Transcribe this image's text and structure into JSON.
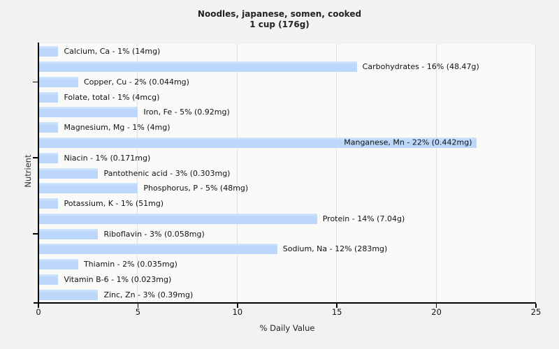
{
  "title": {
    "line1": "Noodles, japanese, somen, cooked",
    "line2": "1 cup (176g)"
  },
  "axes": {
    "x_label": "% Daily Value",
    "y_label": "Nutrient"
  },
  "colors": {
    "page_bg": "#f2f2f0",
    "plot_bg": "#fafaf9",
    "gridline": "#e2e2e0",
    "bar_fill": "#bcd7fa",
    "bar_fill_top": "#d3e4fd",
    "axis": "#000000",
    "text": "#111111"
  },
  "chart_data": {
    "type": "bar",
    "orientation": "horizontal",
    "title": "Noodles, japanese, somen, cooked",
    "subtitle": "1 cup (176g)",
    "xlabel": "% Daily Value",
    "ylabel": "Nutrient",
    "xlim": [
      0,
      25
    ],
    "xticks": [
      0,
      5,
      10,
      15,
      20,
      25
    ],
    "grid": "vertical-at-xticks",
    "legend": "none",
    "y_major_tick_rows": [
      2,
      7,
      12
    ],
    "categories": [
      "Calcium, Ca",
      "Carbohydrates",
      "Copper, Cu",
      "Folate, total",
      "Iron, Fe",
      "Magnesium, Mg",
      "Manganese, Mn",
      "Niacin",
      "Pantothenic acid",
      "Phosphorus, P",
      "Potassium, K",
      "Protein",
      "Riboflavin",
      "Sodium, Na",
      "Thiamin",
      "Vitamin B-6",
      "Zinc, Zn"
    ],
    "values": [
      1,
      16,
      2,
      1,
      5,
      1,
      22,
      1,
      3,
      5,
      1,
      14,
      3,
      12,
      2,
      1,
      3
    ],
    "bars": [
      {
        "nutrient": "Calcium, Ca",
        "percent": 1,
        "amount": "14mg",
        "label": "Calcium, Ca - 1% (14mg)",
        "label_inside": false
      },
      {
        "nutrient": "Carbohydrates",
        "percent": 16,
        "amount": "48.47g",
        "label": "Carbohydrates - 16% (48.47g)",
        "label_inside": false
      },
      {
        "nutrient": "Copper, Cu",
        "percent": 2,
        "amount": "0.044mg",
        "label": "Copper, Cu - 2% (0.044mg)",
        "label_inside": false
      },
      {
        "nutrient": "Folate, total",
        "percent": 1,
        "amount": "4mcg",
        "label": "Folate, total - 1% (4mcg)",
        "label_inside": false
      },
      {
        "nutrient": "Iron, Fe",
        "percent": 5,
        "amount": "0.92mg",
        "label": "Iron, Fe - 5% (0.92mg)",
        "label_inside": false
      },
      {
        "nutrient": "Magnesium, Mg",
        "percent": 1,
        "amount": "4mg",
        "label": "Magnesium, Mg - 1% (4mg)",
        "label_inside": false
      },
      {
        "nutrient": "Manganese, Mn",
        "percent": 22,
        "amount": "0.442mg",
        "label": "Manganese, Mn - 22% (0.442mg)",
        "label_inside": true
      },
      {
        "nutrient": "Niacin",
        "percent": 1,
        "amount": "0.171mg",
        "label": "Niacin - 1% (0.171mg)",
        "label_inside": false
      },
      {
        "nutrient": "Pantothenic acid",
        "percent": 3,
        "amount": "0.303mg",
        "label": "Pantothenic acid - 3% (0.303mg)",
        "label_inside": false
      },
      {
        "nutrient": "Phosphorus, P",
        "percent": 5,
        "amount": "48mg",
        "label": "Phosphorus, P - 5% (48mg)",
        "label_inside": false
      },
      {
        "nutrient": "Potassium, K",
        "percent": 1,
        "amount": "51mg",
        "label": "Potassium, K - 1% (51mg)",
        "label_inside": false
      },
      {
        "nutrient": "Protein",
        "percent": 14,
        "amount": "7.04g",
        "label": "Protein - 14% (7.04g)",
        "label_inside": false
      },
      {
        "nutrient": "Riboflavin",
        "percent": 3,
        "amount": "0.058mg",
        "label": "Riboflavin - 3% (0.058mg)",
        "label_inside": false
      },
      {
        "nutrient": "Sodium, Na",
        "percent": 12,
        "amount": "283mg",
        "label": "Sodium, Na - 12% (283mg)",
        "label_inside": false
      },
      {
        "nutrient": "Thiamin",
        "percent": 2,
        "amount": "0.035mg",
        "label": "Thiamin - 2% (0.035mg)",
        "label_inside": false
      },
      {
        "nutrient": "Vitamin B-6",
        "percent": 1,
        "amount": "0.023mg",
        "label": "Vitamin B-6 - 1% (0.023mg)",
        "label_inside": false
      },
      {
        "nutrient": "Zinc, Zn",
        "percent": 3,
        "amount": "0.39mg",
        "label": "Zinc, Zn - 3% (0.39mg)",
        "label_inside": false
      }
    ]
  }
}
